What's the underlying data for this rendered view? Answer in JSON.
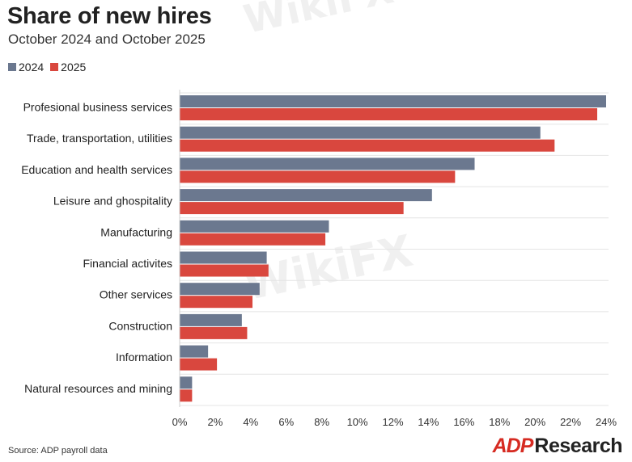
{
  "header": {
    "title": "Share of new hires",
    "subtitle": "October 2024 and October 2025"
  },
  "legend": [
    {
      "label": "2024",
      "color": "#6b788f"
    },
    {
      "label": "2025",
      "color": "#d9473e"
    }
  ],
  "chart_data": {
    "type": "bar",
    "orientation": "horizontal",
    "categories": [
      "Profesional business services",
      "Trade, transportation, utilities",
      "Education and health services",
      "Leisure and ghospitality",
      "Manufacturing",
      "Financial activites",
      "Other services",
      "Construction",
      "Information",
      "Natural resources and mining"
    ],
    "series": [
      {
        "name": "2024",
        "color": "#6b788f",
        "values": [
          24.0,
          20.3,
          16.6,
          14.2,
          8.4,
          4.9,
          4.5,
          3.5,
          1.6,
          0.7
        ]
      },
      {
        "name": "2025",
        "color": "#d9473e",
        "values": [
          23.5,
          21.1,
          15.5,
          12.6,
          8.2,
          5.0,
          4.1,
          3.8,
          2.1,
          0.7
        ]
      }
    ],
    "xlim": [
      0,
      24
    ],
    "x_ticks": [
      "0%",
      "2%",
      "4%",
      "6%",
      "8%",
      "10%",
      "12%",
      "14%",
      "16%",
      "18%",
      "20%",
      "22%",
      "24%"
    ],
    "grid": true,
    "legend_position": "top-left"
  },
  "footer": {
    "source": "Source: ADP payroll data",
    "brand_logo": "ADP",
    "brand_text": "Research"
  },
  "watermark": {
    "text": "WikiFX"
  }
}
